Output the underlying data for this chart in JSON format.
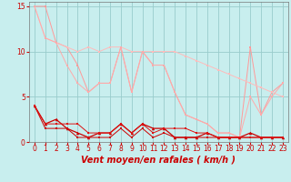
{
  "background_color": "#c8eeee",
  "grid_color": "#99cccc",
  "xlabel": "Vent moyen/en rafales ( km/h )",
  "ylim": [
    0,
    15.5
  ],
  "yticks": [
    0,
    5,
    10,
    15
  ],
  "series": [
    {
      "x": [
        0,
        1,
        2,
        3,
        4,
        5,
        6,
        7,
        8,
        9,
        10,
        11,
        12,
        13,
        14,
        15,
        16,
        17,
        18,
        19,
        20,
        21,
        22,
        23
      ],
      "y": [
        15,
        15,
        11,
        10.5,
        8.5,
        5.5,
        6.5,
        6.5,
        10.5,
        5.5,
        10,
        8.5,
        8.5,
        5.5,
        3,
        2.5,
        2,
        1,
        1,
        0.5,
        10.5,
        3,
        5.5,
        6.5
      ],
      "color": "#ff9999",
      "marker": "s",
      "markersize": 1.8,
      "linewidth": 0.7
    },
    {
      "x": [
        0,
        1,
        2,
        3,
        4,
        5,
        6,
        7,
        8,
        9,
        10,
        11,
        12,
        13,
        14,
        15,
        16,
        17,
        18,
        19,
        20,
        21,
        22,
        23
      ],
      "y": [
        15,
        11.5,
        11,
        10.5,
        10,
        10.5,
        10,
        10.5,
        10.5,
        10,
        10,
        10,
        10,
        10,
        9.5,
        9,
        8.5,
        8,
        7.5,
        7,
        6.5,
        6,
        5.5,
        5
      ],
      "color": "#ffbbbb",
      "marker": "s",
      "markersize": 1.8,
      "linewidth": 0.7
    },
    {
      "x": [
        0,
        1,
        2,
        3,
        4,
        5,
        6,
        7,
        8,
        9,
        10,
        11,
        12,
        13,
        14,
        15,
        16,
        17,
        18,
        19,
        20,
        21,
        22,
        23
      ],
      "y": [
        15,
        11.5,
        11,
        8.5,
        6.5,
        5.5,
        6.5,
        6.5,
        10.5,
        5.5,
        10,
        8.5,
        8.5,
        5.5,
        3,
        2.5,
        2,
        1,
        1,
        0.5,
        5,
        3,
        5,
        6.5
      ],
      "color": "#ffaaaa",
      "marker": "s",
      "markersize": 1.8,
      "linewidth": 0.7
    },
    {
      "x": [
        0,
        1,
        2,
        3,
        4,
        5,
        6,
        7,
        8,
        9,
        10,
        11,
        12,
        13,
        14,
        15,
        16,
        17,
        18,
        19,
        20,
        21,
        22,
        23
      ],
      "y": [
        4,
        2,
        2.5,
        1.5,
        1,
        0.5,
        1,
        1,
        2,
        1,
        2,
        1.5,
        1.5,
        0.5,
        0.5,
        0.5,
        1,
        0.5,
        0.5,
        0.5,
        1,
        0.5,
        0.5,
        0.5
      ],
      "color": "#cc0000",
      "marker": "^",
      "markersize": 2.5,
      "linewidth": 0.9
    },
    {
      "x": [
        0,
        1,
        2,
        3,
        4,
        5,
        6,
        7,
        8,
        9,
        10,
        11,
        12,
        13,
        14,
        15,
        16,
        17,
        18,
        19,
        20,
        21,
        22,
        23
      ],
      "y": [
        4,
        1.5,
        1.5,
        1.5,
        0.5,
        0.5,
        0.5,
        0.5,
        1.5,
        0.5,
        1.5,
        0.5,
        1,
        0.5,
        0.5,
        0.5,
        0.5,
        0.5,
        0.5,
        0.5,
        0.5,
        0.5,
        0.5,
        0.5
      ],
      "color": "#cc0000",
      "marker": "s",
      "markersize": 1.8,
      "linewidth": 0.7
    },
    {
      "x": [
        0,
        1,
        2,
        3,
        4,
        5,
        6,
        7,
        8,
        9,
        10,
        11,
        12,
        13,
        14,
        15,
        16,
        17,
        18,
        19,
        20,
        21,
        22,
        23
      ],
      "y": [
        4,
        2,
        2,
        2,
        2,
        1,
        1,
        1,
        2,
        1,
        2,
        1,
        1.5,
        1.5,
        1.5,
        1,
        1,
        0.5,
        0.5,
        0.5,
        0.5,
        0.5,
        0.5,
        0.5
      ],
      "color": "#dd1111",
      "marker": "s",
      "markersize": 1.8,
      "linewidth": 0.7
    }
  ],
  "xlabel_fontsize": 7,
  "tick_fontsize": 5.5,
  "tick_color": "#cc0000",
  "xlabel_color": "#cc0000",
  "xlabel_fontweight": "bold"
}
